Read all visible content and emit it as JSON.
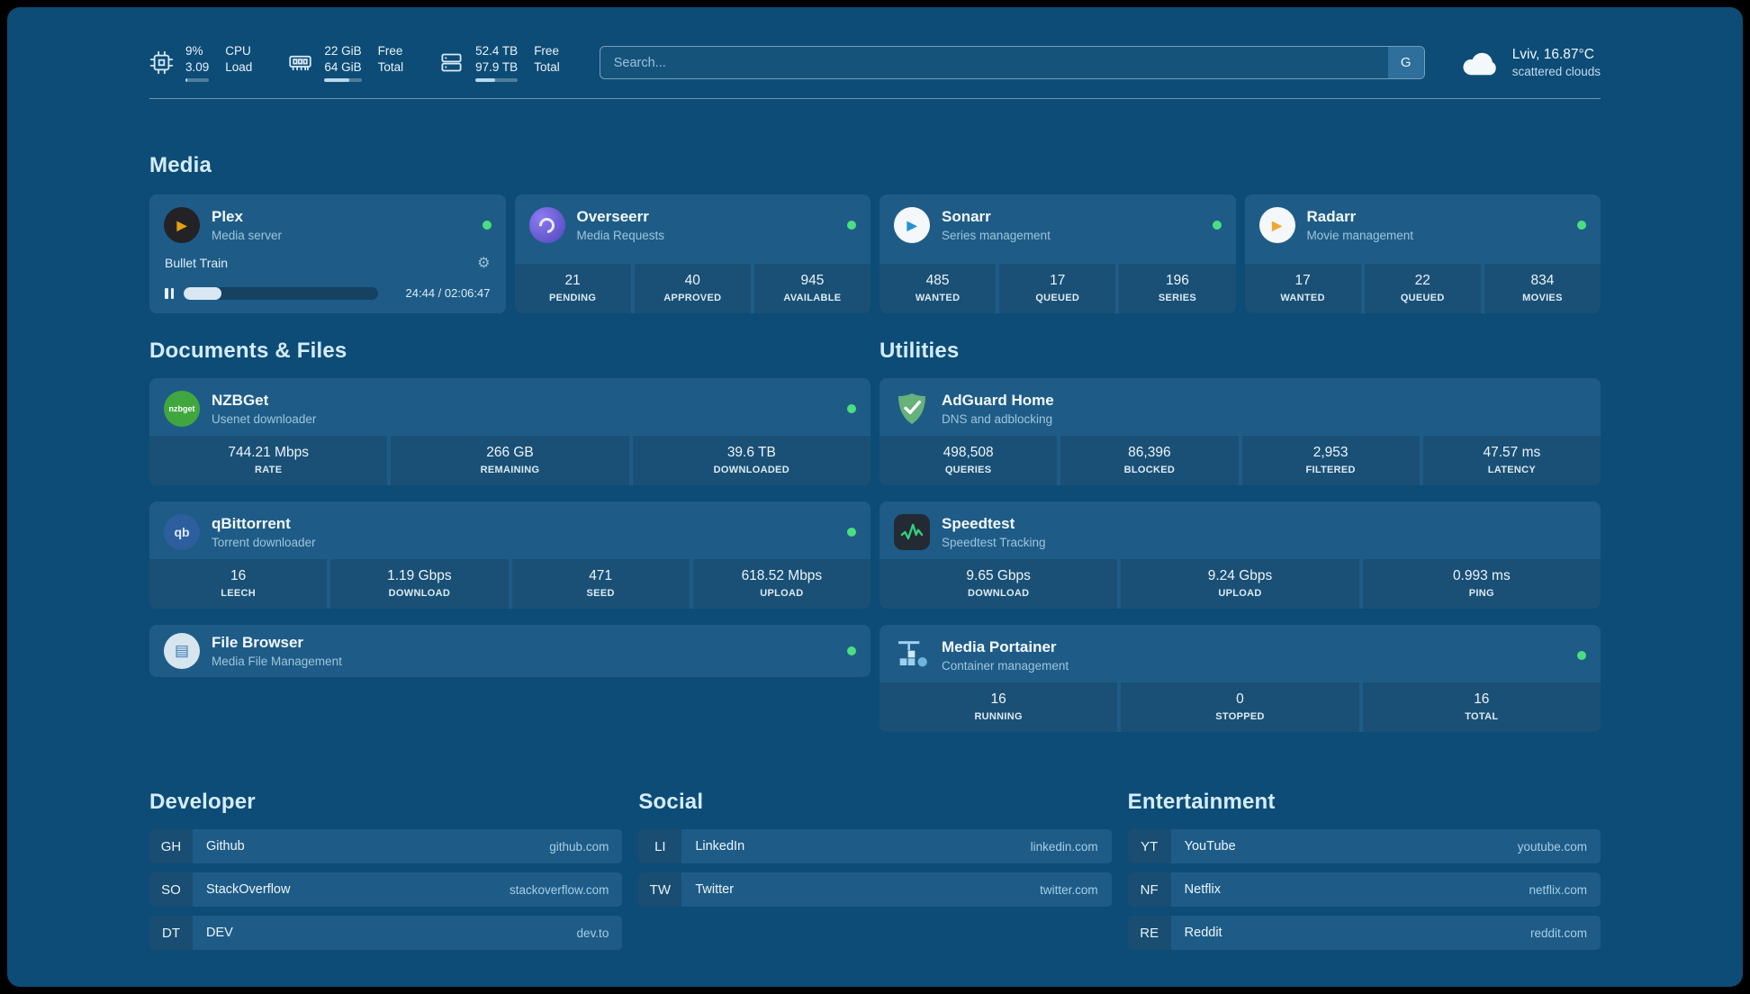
{
  "colors": {
    "page_bg": "#0d4c76",
    "card_bg": "#1e5c87",
    "status_online": "#4ade80",
    "section_title": "#d5ecfc"
  },
  "topbar": {
    "resources": [
      {
        "icon": "cpu-icon",
        "values": [
          "9%",
          "3.09"
        ],
        "labels": [
          "CPU",
          "Load"
        ],
        "bar_pct": 9
      },
      {
        "icon": "memory-icon",
        "values": [
          "22 GiB",
          "64 GiB"
        ],
        "labels": [
          "Free",
          "Total"
        ],
        "bar_pct": 66
      },
      {
        "icon": "disk-icon",
        "values": [
          "52.4 TB",
          "97.9 TB"
        ],
        "labels": [
          "Free",
          "Total"
        ],
        "bar_pct": 47
      }
    ],
    "search": {
      "placeholder": "Search...",
      "provider_button": "G"
    },
    "weather": {
      "icon": "cloud-icon",
      "location": "Lviv, 16.87°C",
      "condition": "scattered clouds"
    }
  },
  "sections": {
    "media": {
      "title": "Media",
      "cards": [
        {
          "icon": "plex-icon",
          "title": "Plex",
          "subtitle": "Media server",
          "online": true,
          "now_playing": {
            "title": "Bullet Train",
            "time": "24:44 / 02:06:47",
            "progress_pct": 19.5
          }
        },
        {
          "icon": "overseerr-icon",
          "title": "Overseerr",
          "subtitle": "Media Requests",
          "online": true,
          "stats": [
            {
              "value": "21",
              "label": "PENDING"
            },
            {
              "value": "40",
              "label": "APPROVED"
            },
            {
              "value": "945",
              "label": "AVAILABLE"
            }
          ]
        },
        {
          "icon": "sonarr-icon",
          "title": "Sonarr",
          "subtitle": "Series management",
          "online": true,
          "stats": [
            {
              "value": "485",
              "label": "WANTED"
            },
            {
              "value": "17",
              "label": "QUEUED"
            },
            {
              "value": "196",
              "label": "SERIES"
            }
          ]
        },
        {
          "icon": "radarr-icon",
          "title": "Radarr",
          "subtitle": "Movie management",
          "online": true,
          "stats": [
            {
              "value": "17",
              "label": "WANTED"
            },
            {
              "value": "22",
              "label": "QUEUED"
            },
            {
              "value": "834",
              "label": "MOVIES"
            }
          ]
        }
      ]
    },
    "documents": {
      "title": "Documents & Files",
      "cards": [
        {
          "icon": "nzbget-icon",
          "icon_text": "nzbget",
          "title": "NZBGet",
          "subtitle": "Usenet downloader",
          "online": true,
          "stats": [
            {
              "value": "744.21 Mbps",
              "label": "RATE"
            },
            {
              "value": "266 GB",
              "label": "REMAINING"
            },
            {
              "value": "39.6 TB",
              "label": "DOWNLOADED"
            }
          ]
        },
        {
          "icon": "qbittorrent-icon",
          "icon_text": "qb",
          "title": "qBittorrent",
          "subtitle": "Torrent downloader",
          "online": true,
          "stats": [
            {
              "value": "16",
              "label": "LEECH"
            },
            {
              "value": "1.19 Gbps",
              "label": "DOWNLOAD"
            },
            {
              "value": "471",
              "label": "SEED"
            },
            {
              "value": "618.52 Mbps",
              "label": "UPLOAD"
            }
          ]
        },
        {
          "icon": "filebrowser-icon",
          "title": "File Browser",
          "subtitle": "Media File Management",
          "online": true
        }
      ]
    },
    "utilities": {
      "title": "Utilities",
      "cards": [
        {
          "icon": "adguard-icon",
          "title": "AdGuard Home",
          "subtitle": "DNS and adblocking",
          "stats": [
            {
              "value": "498,508",
              "label": "QUERIES"
            },
            {
              "value": "86,396",
              "label": "BLOCKED"
            },
            {
              "value": "2,953",
              "label": "FILTERED"
            },
            {
              "value": "47.57 ms",
              "label": "LATENCY"
            }
          ]
        },
        {
          "icon": "speedtest-icon",
          "title": "Speedtest",
          "subtitle": "Speedtest Tracking",
          "stats": [
            {
              "value": "9.65 Gbps",
              "label": "DOWNLOAD"
            },
            {
              "value": "9.24 Gbps",
              "label": "UPLOAD"
            },
            {
              "value": "0.993 ms",
              "label": "PING"
            }
          ]
        },
        {
          "icon": "portainer-icon",
          "title": "Media Portainer",
          "subtitle": "Container management",
          "online": true,
          "stats": [
            {
              "value": "16",
              "label": "RUNNING"
            },
            {
              "value": "0",
              "label": "STOPPED"
            },
            {
              "value": "16",
              "label": "TOTAL"
            }
          ]
        }
      ]
    }
  },
  "bookmarks": {
    "groups": [
      {
        "title": "Developer",
        "items": [
          {
            "abbr": "GH",
            "name": "Github",
            "url": "github.com"
          },
          {
            "abbr": "SO",
            "name": "StackOverflow",
            "url": "stackoverflow.com"
          },
          {
            "abbr": "DT",
            "name": "DEV",
            "url": "dev.to"
          }
        ]
      },
      {
        "title": "Social",
        "items": [
          {
            "abbr": "LI",
            "name": "LinkedIn",
            "url": "linkedin.com"
          },
          {
            "abbr": "TW",
            "name": "Twitter",
            "url": "twitter.com"
          }
        ]
      },
      {
        "title": "Entertainment",
        "items": [
          {
            "abbr": "YT",
            "name": "YouTube",
            "url": "youtube.com"
          },
          {
            "abbr": "NF",
            "name": "Netflix",
            "url": "netflix.com"
          },
          {
            "abbr": "RE",
            "name": "Reddit",
            "url": "reddit.com"
          }
        ]
      }
    ]
  }
}
